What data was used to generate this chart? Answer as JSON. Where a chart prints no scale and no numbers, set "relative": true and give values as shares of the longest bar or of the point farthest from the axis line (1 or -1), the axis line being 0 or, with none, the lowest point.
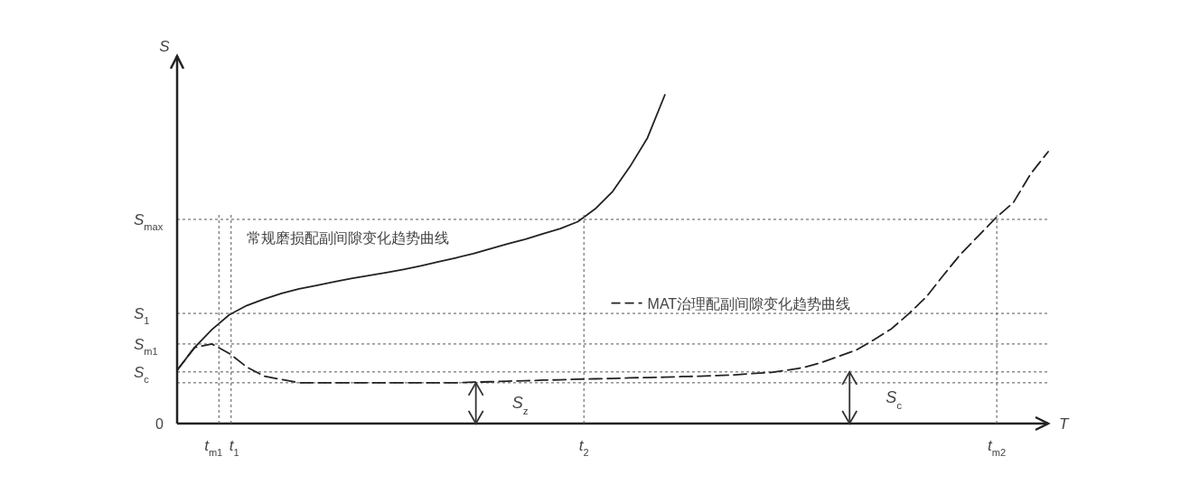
{
  "chart_data": {
    "type": "line",
    "relative": true,
    "xlabel": "T",
    "ylabel": "S",
    "categories": [
      null,
      null,
      null,
      null,
      null,
      null,
      null,
      null,
      null,
      null,
      null,
      null,
      null,
      null,
      null,
      null,
      null,
      null,
      null,
      null,
      null,
      null,
      null,
      null,
      null,
      null,
      null,
      null,
      null,
      null,
      null,
      null,
      null,
      null,
      null,
      null,
      null,
      null,
      null,
      null,
      null,
      null,
      null,
      null,
      null,
      null,
      null,
      null,
      null,
      null,
      null
    ],
    "series": [
      {
        "name": "常规磨损配副间隙变化趋势曲线",
        "color": "#222222",
        "line_style": "solid",
        "values": [
          0.162,
          0.231,
          0.286,
          0.331,
          0.359,
          0.379,
          0.396,
          0.41,
          0.42,
          0.431,
          0.441,
          0.45,
          0.459,
          0.469,
          0.48,
          0.492,
          0.504,
          0.517,
          0.532,
          0.547,
          0.561,
          0.577,
          0.593,
          0.614,
          0.653,
          0.706,
          0.782,
          0.869,
          1.0,
          null,
          null,
          null,
          null,
          null,
          null,
          null,
          null,
          null,
          null,
          null,
          null,
          null,
          null,
          null,
          null,
          null,
          null,
          null,
          null,
          null,
          null
        ]
      },
      {
        "name": "MAT治理配副间隙变化趋势曲线",
        "color": "#222222",
        "line_style": "dashed",
        "values": [
          0.162,
          0.231,
          0.242,
          0.213,
          0.172,
          0.144,
          0.134,
          0.124,
          0.124,
          0.124,
          0.124,
          0.124,
          0.124,
          0.124,
          0.124,
          0.124,
          0.124,
          0.126,
          0.127,
          0.129,
          0.13,
          0.132,
          0.133,
          0.135,
          0.136,
          0.137,
          0.139,
          0.14,
          0.141,
          0.143,
          0.144,
          0.146,
          0.148,
          0.152,
          0.155,
          0.162,
          0.171,
          0.186,
          0.205,
          0.224,
          0.255,
          0.288,
          0.334,
          0.385,
          0.452,
          0.517,
          0.571,
          0.626,
          0.672,
          0.76,
          0.827
        ]
      }
    ],
    "ref_lines": [
      {
        "axis": "y",
        "value": 0.621,
        "label": "S$_{max}$",
        "line_style": "dotted",
        "color": "#555555"
      },
      {
        "axis": "y",
        "value": 0.335,
        "label": "S$_{1}$",
        "line_style": "dotted",
        "color": "#555555"
      },
      {
        "axis": "y",
        "value": 0.242,
        "label": "S$_{m1}$",
        "line_style": "dotted",
        "color": "#555555"
      },
      {
        "axis": "y",
        "value": 0.157,
        "label": "S$_{c}$",
        "line_style": "dotted",
        "color": "#555555"
      },
      {
        "axis": "y",
        "value": 0.124,
        "line_style": "dotted",
        "color": "#555555"
      }
    ],
    "annotations": [
      "0",
      "t$_{m1}$",
      "t$_{1}$",
      "t$_{2}$",
      "t$_{m2}$",
      {
        "text": "S$_{z}$",
        "y": 0.124
      },
      {
        "text": "S$_{c}$",
        "y": 0.157
      }
    ]
  }
}
